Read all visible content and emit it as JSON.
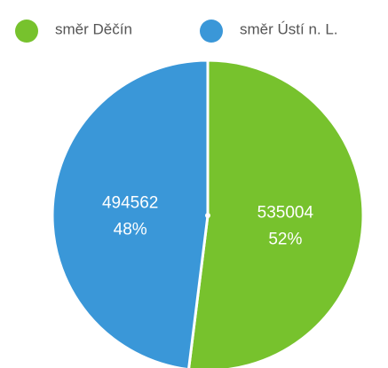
{
  "chart_data": {
    "type": "pie",
    "categories": [
      "směr Děčín",
      "směr Ústí n. L."
    ],
    "values": [
      535004,
      494562
    ],
    "percentages": [
      52,
      48
    ],
    "percentage_labels": [
      "52%",
      "48%"
    ],
    "colors": [
      "#77c22d",
      "#3a97d8"
    ],
    "legend": "top"
  }
}
